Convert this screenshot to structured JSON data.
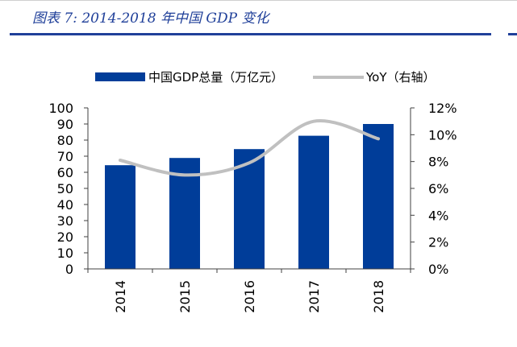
{
  "caption": "图表 7: 2014-2018 年中国 GDP 变化",
  "chart_data": {
    "type": "bar",
    "categories": [
      "2014",
      "2015",
      "2016",
      "2017",
      "2018"
    ],
    "series": [
      {
        "name": "中国GDP总量（万亿元）",
        "kind": "bar",
        "axis": "left",
        "values": [
          64.4,
          68.9,
          74.4,
          82.7,
          90.0
        ]
      },
      {
        "name": "YoY（右轴）",
        "kind": "line",
        "axis": "right",
        "values": [
          8.1,
          7.0,
          7.9,
          11.0,
          9.7
        ]
      }
    ],
    "left_axis": {
      "min": 0,
      "max": 100,
      "ticks": [
        "0",
        "10",
        "20",
        "30",
        "40",
        "50",
        "60",
        "70",
        "80",
        "90",
        "100"
      ]
    },
    "right_axis": {
      "min": 0,
      "max": 12,
      "ticks": [
        "0%",
        "2%",
        "4%",
        "6%",
        "8%",
        "10%",
        "12%"
      ]
    },
    "colors": {
      "bar": "#003d99",
      "line": "#c0c0c0",
      "axis": "#404040"
    }
  }
}
